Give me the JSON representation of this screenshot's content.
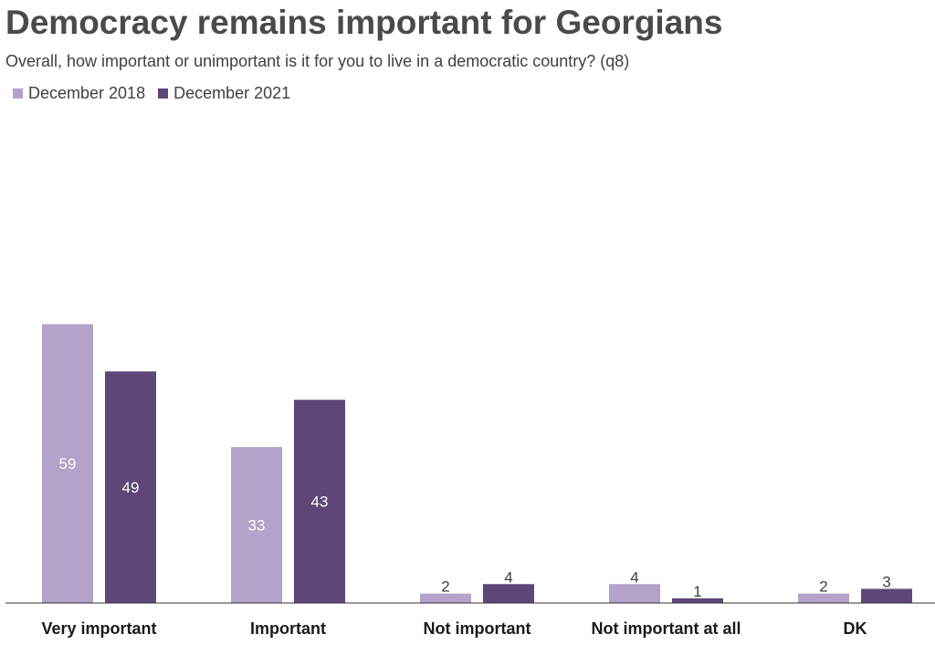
{
  "chart_data": {
    "type": "bar",
    "title": "Democracy remains important for Georgians",
    "subtitle": "Overall, how important or unimportant is it for you to live in a democratic country? (q8)",
    "categories": [
      "Very important",
      "Important",
      "Not important",
      "Not important at all",
      "DK"
    ],
    "series": [
      {
        "name": "December 2018",
        "color": "#b3a2c9",
        "values": [
          59,
          33,
          2,
          4,
          2
        ]
      },
      {
        "name": "December 2021",
        "color": "#5e4778",
        "values": [
          49,
          43,
          4,
          1,
          3
        ]
      }
    ],
    "ylim": [
      0,
      100
    ],
    "xlabel": "",
    "ylabel": "",
    "grid": false,
    "legend": "top-left"
  }
}
